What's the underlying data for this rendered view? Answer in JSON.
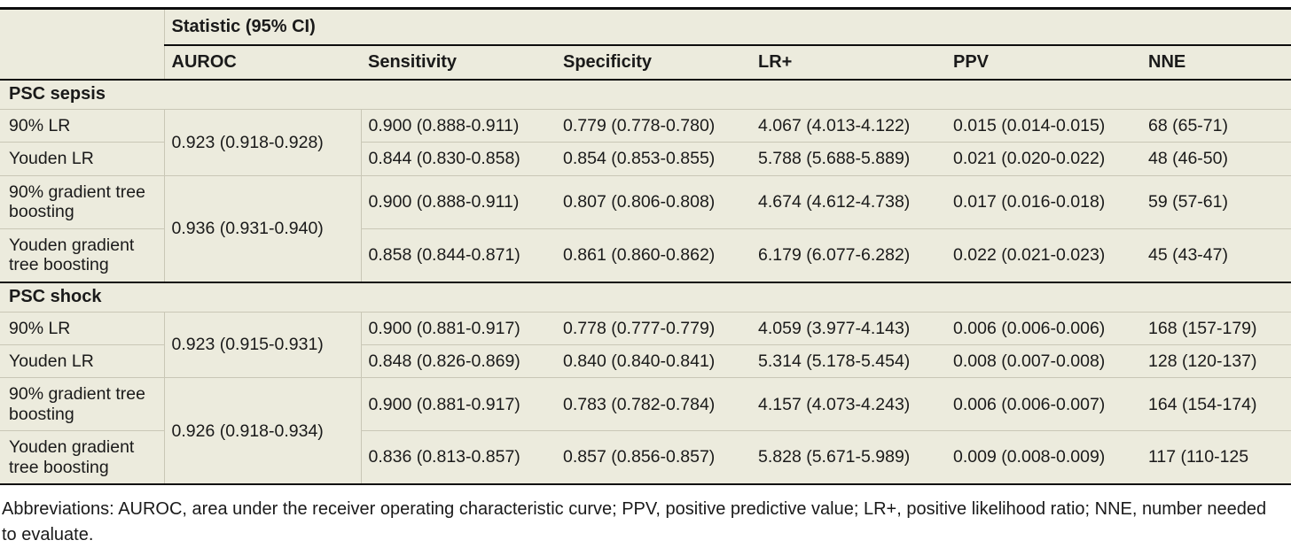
{
  "table": {
    "span_header": "Statistic (95% CI)",
    "columns": [
      "AUROC",
      "Sensitivity",
      "Specificity",
      "LR+",
      "PPV",
      "NNE"
    ],
    "sections": [
      {
        "title": "PSC sepsis",
        "groups": [
          {
            "auroc": "0.923 (0.918-0.928)",
            "rows": [
              {
                "label": "90% LR",
                "sensitivity": "0.900 (0.888-0.911)",
                "specificity": "0.779 (0.778-0.780)",
                "lr_plus": "4.067 (4.013-4.122)",
                "ppv": "0.015 (0.014-0.015)",
                "nne": "68 (65-71)"
              },
              {
                "label": "Youden LR",
                "sensitivity": "0.844 (0.830-0.858)",
                "specificity": "0.854 (0.853-0.855)",
                "lr_plus": "5.788 (5.688-5.889)",
                "ppv": "0.021 (0.020-0.022)",
                "nne": "48 (46-50)"
              }
            ]
          },
          {
            "auroc": "0.936 (0.931-0.940)",
            "rows": [
              {
                "label": "90% gradient tree boosting",
                "sensitivity": "0.900 (0.888-0.911)",
                "specificity": "0.807 (0.806-0.808)",
                "lr_plus": "4.674 (4.612-4.738)",
                "ppv": "0.017 (0.016-0.018)",
                "nne": "59 (57-61)"
              },
              {
                "label": "Youden gradient tree boosting",
                "sensitivity": "0.858 (0.844-0.871)",
                "specificity": "0.861 (0.860-0.862)",
                "lr_plus": "6.179 (6.077-6.282)",
                "ppv": "0.022 (0.021-0.023)",
                "nne": "45 (43-47)"
              }
            ]
          }
        ]
      },
      {
        "title": "PSC shock",
        "groups": [
          {
            "auroc": "0.923 (0.915-0.931)",
            "rows": [
              {
                "label": "90% LR",
                "sensitivity": "0.900 (0.881-0.917)",
                "specificity": "0.778 (0.777-0.779)",
                "lr_plus": "4.059 (3.977-4.143)",
                "ppv": "0.006 (0.006-0.006)",
                "nne": "168 (157-179)"
              },
              {
                "label": "Youden LR",
                "sensitivity": "0.848 (0.826-0.869)",
                "specificity": "0.840 (0.840-0.841)",
                "lr_plus": "5.314 (5.178-5.454)",
                "ppv": "0.008 (0.007-0.008)",
                "nne": "128 (120-137)"
              }
            ]
          },
          {
            "auroc": "0.926 (0.918-0.934)",
            "rows": [
              {
                "label": "90% gradient tree boosting",
                "sensitivity": "0.900 (0.881-0.917)",
                "specificity": "0.783 (0.782-0.784)",
                "lr_plus": "4.157 (4.073-4.243)",
                "ppv": "0.006 (0.006-0.007)",
                "nne": "164 (154-174)"
              },
              {
                "label": "Youden gradient tree boosting",
                "sensitivity": "0.836 (0.813-0.857)",
                "specificity": "0.857 (0.856-0.857)",
                "lr_plus": "5.828 (5.671-5.989)",
                "ppv": "0.009 (0.008-0.009)",
                "nne": "117 (110-125"
              }
            ]
          }
        ]
      }
    ]
  },
  "footnote": {
    "line1": "Abbreviations: AUROC, area under the receiver operating characteristic curve; PPV, positive predictive value; LR+, positive likelihood ratio; NNE, number needed",
    "line2": "to evaluate."
  },
  "colors": {
    "table_background": "#ecebdd",
    "thin_rule": "#c9c7b6",
    "thick_rule": "#0d0d0d",
    "text": "#1a1a1a"
  }
}
